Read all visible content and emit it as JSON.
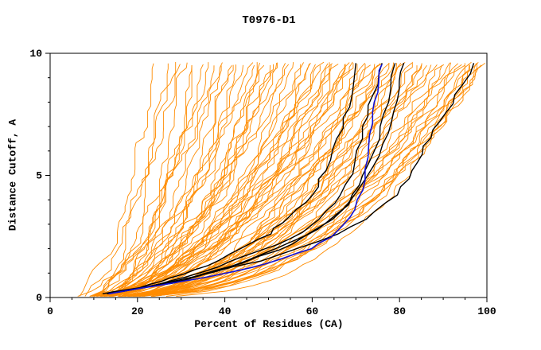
{
  "chart_data": {
    "type": "line",
    "title": "T0976-D1",
    "xlabel": "Percent of Residues (CA)",
    "ylabel": "Distance Cutoff, A",
    "xlim": [
      0,
      100
    ],
    "ylim": [
      0,
      10
    ],
    "x_ticks": [
      0,
      20,
      40,
      60,
      80,
      100
    ],
    "y_ticks": [
      0,
      5,
      10
    ],
    "x_minor_step": 5,
    "y_minor_step": 1,
    "grid": false,
    "legend": "none",
    "colors": {
      "model_curves": "#ff8c00",
      "reference_curves": "#000000",
      "highlight_curve": "#1111d6",
      "axis": "#000000",
      "text": "#000000"
    },
    "orange_model_curves": [
      [
        6,
        25,
        0.55
      ],
      [
        8,
        27,
        0.5
      ],
      [
        10,
        29,
        0.6
      ],
      [
        7,
        31,
        0.45
      ],
      [
        12,
        33,
        0.5
      ],
      [
        9,
        35,
        0.55
      ],
      [
        11,
        37,
        0.5
      ],
      [
        6,
        39,
        0.6
      ],
      [
        13,
        41,
        0.45
      ],
      [
        8,
        28,
        0.65
      ],
      [
        10,
        32,
        0.4
      ],
      [
        7,
        36,
        0.5
      ],
      [
        12,
        40,
        0.55
      ],
      [
        9,
        42,
        0.5
      ],
      [
        10,
        43,
        0.45
      ],
      [
        7,
        45,
        0.5
      ],
      [
        12,
        46,
        0.55
      ],
      [
        9,
        48,
        0.4
      ],
      [
        11,
        50,
        0.5
      ],
      [
        6,
        51,
        0.45
      ],
      [
        13,
        53,
        0.5
      ],
      [
        8,
        54,
        0.55
      ],
      [
        10,
        56,
        0.45
      ],
      [
        12,
        57,
        0.5
      ],
      [
        7,
        58,
        0.4
      ],
      [
        9,
        60,
        0.5
      ],
      [
        11,
        44,
        0.6
      ],
      [
        6,
        47,
        0.35
      ],
      [
        13,
        49,
        0.5
      ],
      [
        8,
        52,
        0.45
      ],
      [
        10,
        55,
        0.55
      ],
      [
        12,
        59,
        0.4
      ],
      [
        7,
        61,
        0.45
      ],
      [
        9,
        62,
        0.5
      ],
      [
        11,
        63,
        0.4
      ],
      [
        6,
        64,
        0.5
      ],
      [
        13,
        65,
        0.45
      ],
      [
        8,
        66,
        0.5
      ],
      [
        10,
        67,
        0.35
      ],
      [
        12,
        68,
        0.5
      ],
      [
        7,
        69,
        0.45
      ],
      [
        9,
        70,
        0.5
      ],
      [
        11,
        71,
        0.4
      ],
      [
        6,
        72,
        0.5
      ],
      [
        13,
        73,
        0.45
      ],
      [
        8,
        74,
        0.5
      ],
      [
        10,
        75,
        0.35
      ],
      [
        12,
        61,
        0.55
      ],
      [
        7,
        64,
        0.4
      ],
      [
        9,
        68,
        0.55
      ],
      [
        11,
        72,
        0.35
      ],
      [
        6,
        75,
        0.5
      ],
      [
        8,
        76,
        0.4
      ],
      [
        10,
        77,
        0.45
      ],
      [
        12,
        78,
        0.35
      ],
      [
        7,
        79,
        0.5
      ],
      [
        9,
        80,
        0.4
      ],
      [
        11,
        81,
        0.45
      ],
      [
        6,
        82,
        0.35
      ],
      [
        13,
        83,
        0.45
      ],
      [
        8,
        84,
        0.4
      ],
      [
        10,
        85,
        0.45
      ],
      [
        12,
        86,
        0.35
      ],
      [
        7,
        87,
        0.4
      ],
      [
        9,
        88,
        0.45
      ],
      [
        11,
        89,
        0.35
      ],
      [
        6,
        90,
        0.4
      ],
      [
        13,
        78,
        0.5
      ],
      [
        8,
        82,
        0.45
      ],
      [
        10,
        86,
        0.5
      ],
      [
        7,
        91,
        0.35
      ],
      [
        9,
        92,
        0.4
      ],
      [
        11,
        93,
        0.35
      ],
      [
        6,
        94,
        0.4
      ],
      [
        13,
        95,
        0.35
      ],
      [
        8,
        96,
        0.4
      ],
      [
        10,
        97,
        0.35
      ],
      [
        12,
        98,
        0.4
      ],
      [
        7,
        99,
        0.35
      ],
      [
        9,
        93,
        0.45
      ],
      [
        11,
        96,
        0.3
      ],
      [
        6,
        98,
        0.35
      ],
      [
        13,
        97,
        0.45
      ],
      [
        8,
        99,
        0.4
      ]
    ],
    "black_curves": [
      {
        "points": [
          [
            12,
            0.15
          ],
          [
            20,
            0.4
          ],
          [
            28,
            0.8
          ],
          [
            36,
            1.3
          ],
          [
            44,
            2.0
          ],
          [
            50,
            2.6
          ],
          [
            55,
            3.3
          ],
          [
            60,
            4.2
          ],
          [
            63,
            5.2
          ],
          [
            66,
            6.5
          ],
          [
            68,
            7.8
          ],
          [
            70,
            9.6
          ]
        ]
      },
      {
        "points": [
          [
            13,
            0.15
          ],
          [
            24,
            0.5
          ],
          [
            34,
            1.0
          ],
          [
            45,
            1.7
          ],
          [
            55,
            2.4
          ],
          [
            62,
            3.2
          ],
          [
            67,
            4.2
          ],
          [
            70,
            5.5
          ],
          [
            72,
            7.0
          ],
          [
            74,
            8.3
          ],
          [
            76,
            9.6
          ]
        ]
      },
      {
        "points": [
          [
            14,
            0.2
          ],
          [
            28,
            0.6
          ],
          [
            40,
            1.2
          ],
          [
            52,
            2.0
          ],
          [
            61,
            2.8
          ],
          [
            68,
            3.8
          ],
          [
            72,
            5.0
          ],
          [
            75,
            6.5
          ],
          [
            77,
            8.0
          ],
          [
            79,
            9.6
          ]
        ]
      },
      {
        "points": [
          [
            15,
            0.2
          ],
          [
            30,
            0.7
          ],
          [
            44,
            1.4
          ],
          [
            56,
            2.2
          ],
          [
            65,
            3.2
          ],
          [
            71,
            4.4
          ],
          [
            75,
            5.8
          ],
          [
            78,
            7.2
          ],
          [
            80,
            8.5
          ],
          [
            81,
            9.6
          ]
        ]
      },
      {
        "points": [
          [
            16,
            0.25
          ],
          [
            32,
            0.8
          ],
          [
            48,
            1.5
          ],
          [
            62,
            2.3
          ],
          [
            72,
            3.2
          ],
          [
            79,
            4.2
          ],
          [
            83,
            5.2
          ],
          [
            86,
            6.2
          ],
          [
            89,
            7.2
          ],
          [
            93,
            8.3
          ],
          [
            97,
            9.6
          ]
        ]
      }
    ],
    "blue_curve": {
      "points": [
        [
          13,
          0.15
        ],
        [
          25,
          0.5
        ],
        [
          38,
          0.9
        ],
        [
          50,
          1.4
        ],
        [
          60,
          2.0
        ],
        [
          66,
          2.7
        ],
        [
          70,
          3.6
        ],
        [
          72,
          4.8
        ],
        [
          73,
          6.2
        ],
        [
          74,
          7.6
        ],
        [
          75,
          8.8
        ],
        [
          76,
          9.55
        ]
      ]
    }
  }
}
